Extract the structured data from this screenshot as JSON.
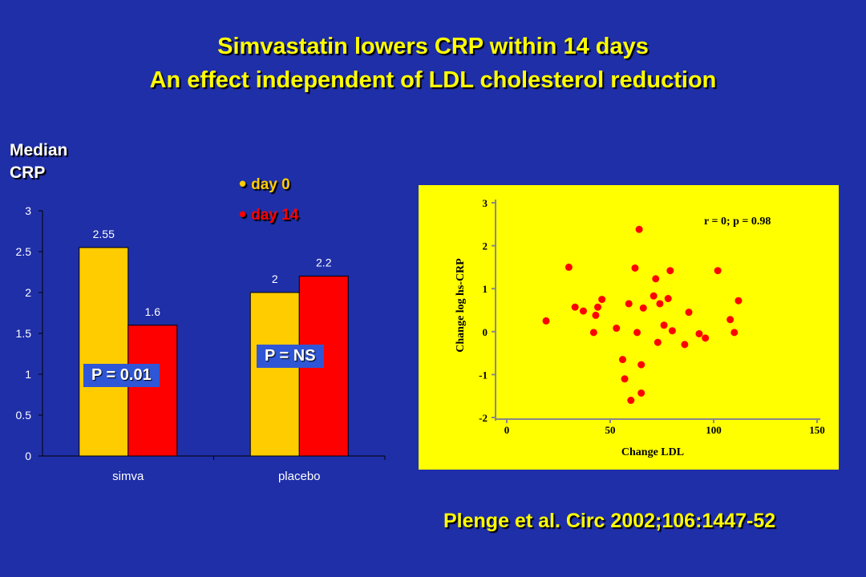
{
  "slide": {
    "title_line1": "Simvastatin lowers CRP within 14 days",
    "title_line2": "An effect independent of LDL cholesterol reduction",
    "citation": "Plenge et al. Circ 2002;106:1447-52"
  },
  "colors": {
    "background": "#1f2fa8",
    "title": "#ffff00",
    "day0": "#ffcc00",
    "day14": "#ff0000",
    "scatter_bg": "#ffff00",
    "scatter_point": "#ff0000"
  },
  "chart_data": [
    {
      "type": "bar",
      "ylabel_line1": "Median",
      "ylabel_line2": "CRP",
      "categories": [
        "simva",
        "placebo"
      ],
      "series": [
        {
          "name": "day 0",
          "values": [
            2.55,
            2
          ]
        },
        {
          "name": "day 14",
          "values": [
            1.6,
            2.2
          ]
        }
      ],
      "data_labels": [
        [
          "2.55",
          "2"
        ],
        [
          "1.6",
          "2.2"
        ]
      ],
      "ylim": [
        0,
        3
      ],
      "yticks": [
        "0",
        "0.5",
        "1",
        "1.5",
        "2",
        "2.5",
        "3"
      ],
      "legend_bullet": "•",
      "annotations": [
        "P = 0.01",
        "P = NS"
      ],
      "grid": false,
      "legend_position": "top"
    },
    {
      "type": "scatter",
      "xlabel": "Change LDL",
      "ylabel": "Change log hs-CRP",
      "xlim": [
        0,
        150
      ],
      "ylim": [
        -2,
        3
      ],
      "xticks": [
        "0",
        "50",
        "100",
        "150"
      ],
      "yticks": [
        "-2",
        "-1",
        "0",
        "1",
        "2",
        "3"
      ],
      "annotation": "r = 0; p = 0.98",
      "points": [
        [
          19,
          0.25
        ],
        [
          30,
          1.5
        ],
        [
          33,
          0.57
        ],
        [
          37,
          0.48
        ],
        [
          42,
          -0.02
        ],
        [
          43,
          0.38
        ],
        [
          44,
          0.57
        ],
        [
          46,
          0.75
        ],
        [
          53,
          0.08
        ],
        [
          56,
          -0.65
        ],
        [
          57,
          -1.1
        ],
        [
          59,
          0.65
        ],
        [
          60,
          -1.6
        ],
        [
          62,
          1.48
        ],
        [
          63,
          -0.02
        ],
        [
          64,
          2.38
        ],
        [
          65,
          -0.77
        ],
        [
          65,
          -1.43
        ],
        [
          66,
          0.55
        ],
        [
          71,
          0.83
        ],
        [
          72,
          1.23
        ],
        [
          73,
          -0.25
        ],
        [
          74,
          0.65
        ],
        [
          76,
          0.15
        ],
        [
          78,
          0.77
        ],
        [
          79,
          1.42
        ],
        [
          80,
          0.02
        ],
        [
          86,
          -0.3
        ],
        [
          88,
          0.45
        ],
        [
          93,
          -0.05
        ],
        [
          96,
          -0.15
        ],
        [
          102,
          1.42
        ],
        [
          108,
          0.28
        ],
        [
          110,
          -0.02
        ],
        [
          112,
          0.72
        ]
      ],
      "grid": false
    }
  ]
}
